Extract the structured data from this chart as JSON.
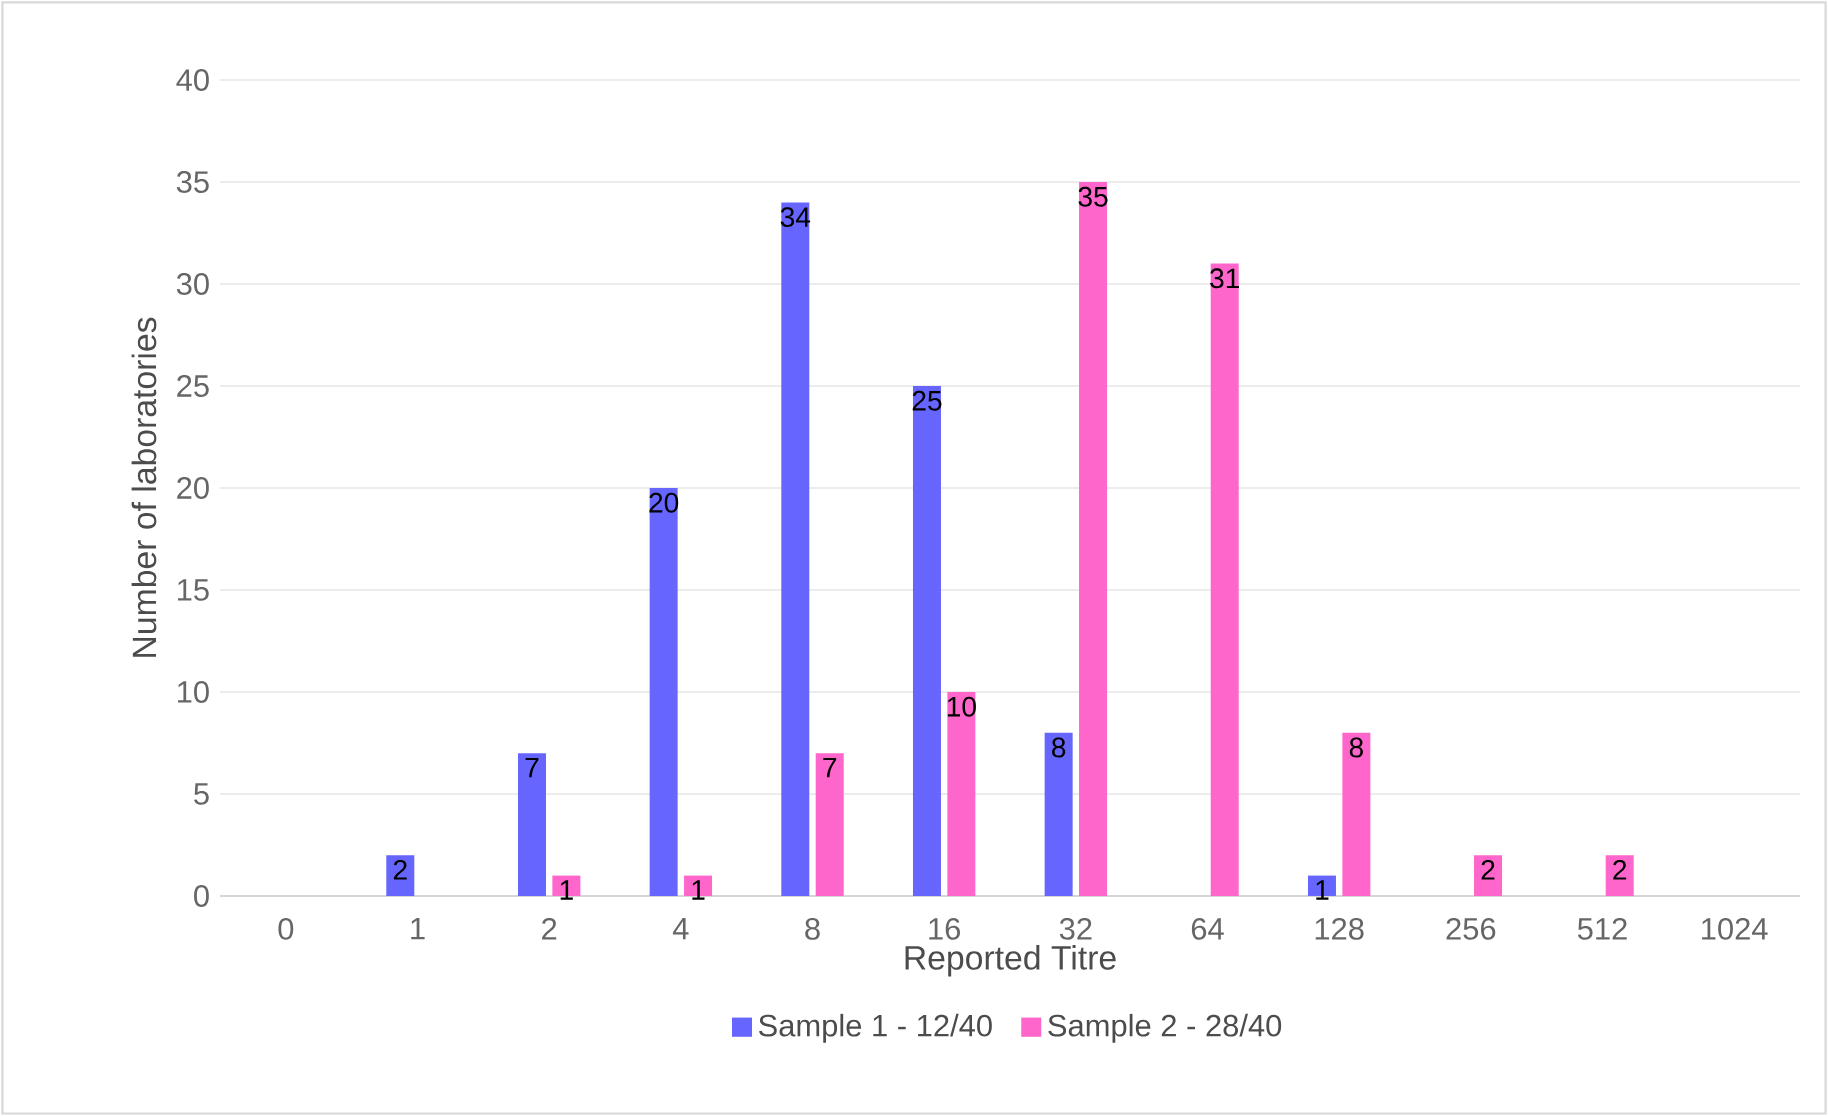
{
  "chart_data": {
    "type": "bar",
    "xlabel": "Reported Titre",
    "ylabel": "Number of laboratories",
    "categories": [
      "0",
      "1",
      "2",
      "4",
      "8",
      "16",
      "32",
      "64",
      "128",
      "256",
      "512",
      "1024"
    ],
    "series": [
      {
        "name": "Sample 1 - 12/40",
        "color": "#6666ff",
        "values": [
          null,
          2,
          7,
          20,
          34,
          25,
          8,
          null,
          1,
          null,
          null,
          null
        ]
      },
      {
        "name": "Sample 2 - 28/40",
        "color": "#ff66cc",
        "values": [
          null,
          null,
          1,
          1,
          7,
          10,
          35,
          31,
          8,
          2,
          2,
          null
        ]
      }
    ],
    "ylim": [
      0,
      40
    ],
    "yticks": [
      0,
      5,
      10,
      15,
      20,
      25,
      30,
      35,
      40
    ],
    "grid": "y",
    "legend": "bottom",
    "data_labels": true
  }
}
